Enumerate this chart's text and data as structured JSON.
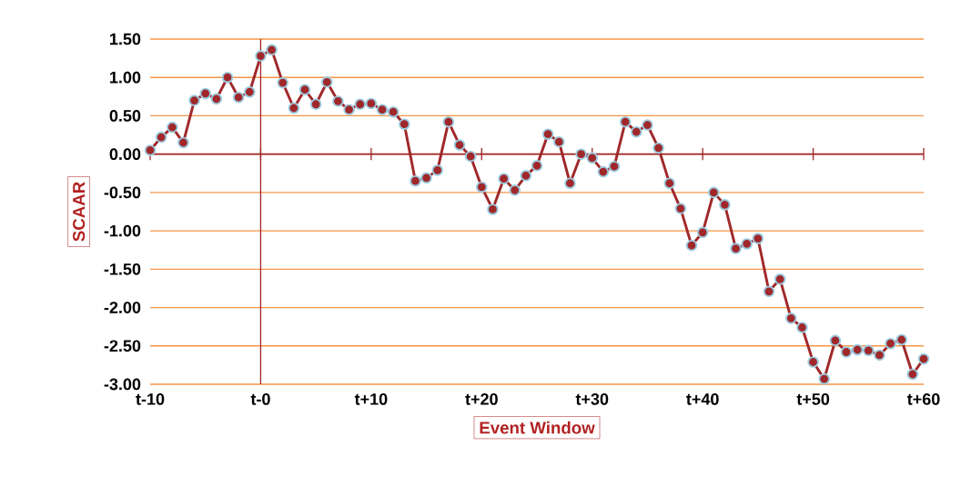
{
  "chart_data": {
    "type": "line",
    "xlabel": "Event Window",
    "ylabel": "SCAAR",
    "categories": [
      "t-10",
      null,
      null,
      null,
      null,
      null,
      null,
      null,
      null,
      null,
      "t-0",
      null,
      null,
      null,
      null,
      null,
      null,
      null,
      null,
      null,
      "t+10",
      null,
      null,
      null,
      null,
      null,
      null,
      null,
      null,
      null,
      "t+20",
      null,
      null,
      null,
      null,
      null,
      null,
      null,
      null,
      null,
      "t+30",
      null,
      null,
      null,
      null,
      null,
      null,
      null,
      null,
      null,
      "t+40",
      null,
      null,
      null,
      null,
      null,
      null,
      null,
      null,
      null,
      "t+50",
      null,
      null,
      null,
      null,
      null,
      null,
      null,
      null,
      null,
      "t+60"
    ],
    "series": [
      {
        "color": "#a0282a",
        "values": [
          0.05,
          0.22,
          0.35,
          0.15,
          0.7,
          0.79,
          0.72,
          1.0,
          0.74,
          0.81,
          1.28,
          1.36,
          0.93,
          0.6,
          0.84,
          0.65,
          0.94,
          0.69,
          0.58,
          0.65,
          0.66,
          0.58,
          0.55,
          0.39,
          -0.35,
          -0.31,
          -0.21,
          0.42,
          0.12,
          -0.03,
          -0.43,
          -0.72,
          -0.32,
          -0.47,
          -0.28,
          -0.15,
          0.26,
          0.16,
          -0.38,
          0.0,
          -0.05,
          -0.23,
          -0.16,
          0.42,
          0.29,
          0.38,
          0.08,
          -0.38,
          -0.71,
          -1.19,
          -1.02,
          -0.5,
          -0.66,
          -1.23,
          -1.17,
          -1.1,
          -1.79,
          -1.63,
          -2.14,
          -2.26,
          -2.71,
          -2.93,
          -2.43,
          -2.58,
          -2.55,
          -2.56,
          -2.62,
          -2.47,
          -2.42,
          -2.87,
          -2.67
        ]
      }
    ],
    "ylim": [
      -3,
      1.5
    ],
    "yticks": [
      {
        "value": 1.5,
        "label": "1.50"
      },
      {
        "value": 1,
        "label": "1.00"
      },
      {
        "value": 0.5,
        "label": "0.50"
      },
      {
        "value": 0,
        "label": "0.00"
      },
      {
        "value": -0.5,
        "label": "-0.50"
      },
      {
        "value": -1,
        "label": "-1.00"
      },
      {
        "value": -1.5,
        "label": "-1.50"
      },
      {
        "value": -2,
        "label": "-2.00"
      },
      {
        "value": -2.5,
        "label": "-2.50"
      },
      {
        "value": -3,
        "label": "-3.00"
      }
    ],
    "ref_lines": [
      {
        "axis": "y",
        "value": 0,
        "color": "#a0282a"
      },
      {
        "axis": "x",
        "value": "t-0",
        "color": "#a0282a"
      }
    ],
    "grid": "y",
    "marker": "circle",
    "line_style": "solid"
  }
}
